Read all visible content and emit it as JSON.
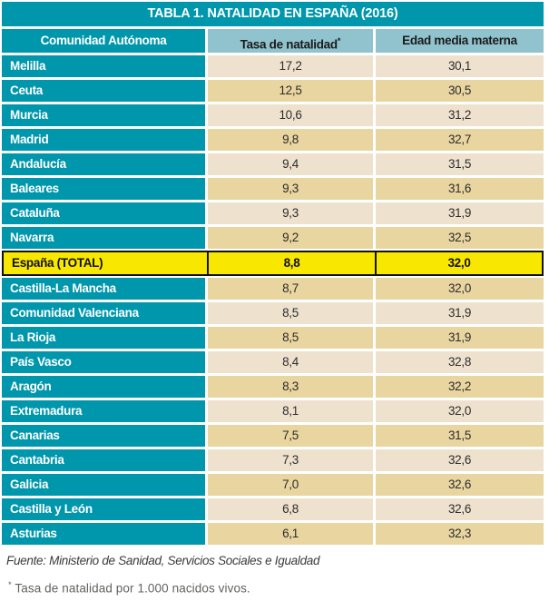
{
  "title": "TABLA 1. NATALIDAD EN ESPAÑA (2016)",
  "header": {
    "col1": "Comunidad Autónoma",
    "col2": "Tasa de natalidad",
    "col2_sup": "*",
    "col3": "Edad media materna"
  },
  "rows": [
    {
      "name": "Melilla",
      "tasa": "17,2",
      "edad": "30,1"
    },
    {
      "name": "Ceuta",
      "tasa": "12,5",
      "edad": "30,5"
    },
    {
      "name": "Murcia",
      "tasa": "10,6",
      "edad": "31,2"
    },
    {
      "name": "Madrid",
      "tasa": "9,8",
      "edad": "32,7"
    },
    {
      "name": "Andalucía",
      "tasa": "9,4",
      "edad": "31,5"
    },
    {
      "name": "Baleares",
      "tasa": "9,3",
      "edad": "31,6"
    },
    {
      "name": "Cataluña",
      "tasa": "9,3",
      "edad": "31,9"
    },
    {
      "name": "Navarra",
      "tasa": "9,2",
      "edad": "32,5"
    },
    {
      "name": "España (TOTAL)",
      "tasa": "8,8",
      "edad": "32,0",
      "highlight": true
    },
    {
      "name": "Castilla-La Mancha",
      "tasa": "8,7",
      "edad": "32,0"
    },
    {
      "name": "Comunidad Valenciana",
      "tasa": "8,5",
      "edad": "31,9"
    },
    {
      "name": "La Rioja",
      "tasa": "8,5",
      "edad": "31,9"
    },
    {
      "name": "País Vasco",
      "tasa": "8,4",
      "edad": "32,8"
    },
    {
      "name": "Aragón",
      "tasa": "8,3",
      "edad": "32,2"
    },
    {
      "name": "Extremadura",
      "tasa": "8,1",
      "edad": "32,0"
    },
    {
      "name": "Canarias",
      "tasa": "7,5",
      "edad": "31,5"
    },
    {
      "name": "Cantabria",
      "tasa": "7,3",
      "edad": "32,6"
    },
    {
      "name": "Galicia",
      "tasa": "7,0",
      "edad": "32,6"
    },
    {
      "name": "Castilla y León",
      "tasa": "6,8",
      "edad": "32,6"
    },
    {
      "name": "Asturias",
      "tasa": "6,1",
      "edad": "32,3"
    }
  ],
  "footer": {
    "source": "Fuente: Ministerio de Sanidad, Servicios Sociales e Igualdad",
    "note_marker": "*",
    "note_text": " Tasa de natalidad por 1.000 nacidos vivos."
  },
  "colors": {
    "teal": "#0096ac",
    "header_bg": "#90c3ce",
    "row_light": "#eee2cf",
    "row_dark": "#e9d5a0",
    "highlight_yellow": "#f8e700",
    "title_text": "#ffffff",
    "body_text": "#2e2d2b"
  },
  "chart_data": {
    "type": "table",
    "title": "TABLA 1. NATALIDAD EN ESPAÑA (2016)",
    "columns": [
      "Comunidad Autónoma",
      "Tasa de natalidad*",
      "Edad media materna"
    ],
    "rows": [
      [
        "Melilla",
        17.2,
        30.1
      ],
      [
        "Ceuta",
        12.5,
        30.5
      ],
      [
        "Murcia",
        10.6,
        31.2
      ],
      [
        "Madrid",
        9.8,
        32.7
      ],
      [
        "Andalucía",
        9.4,
        31.5
      ],
      [
        "Baleares",
        9.3,
        31.6
      ],
      [
        "Cataluña",
        9.3,
        31.9
      ],
      [
        "Navarra",
        9.2,
        32.5
      ],
      [
        "España (TOTAL)",
        8.8,
        32.0
      ],
      [
        "Castilla-La Mancha",
        8.7,
        32.0
      ],
      [
        "Comunidad Valenciana",
        8.5,
        31.9
      ],
      [
        "La Rioja",
        8.5,
        31.9
      ],
      [
        "País Vasco",
        8.4,
        32.8
      ],
      [
        "Aragón",
        8.3,
        32.2
      ],
      [
        "Extremadura",
        8.1,
        32.0
      ],
      [
        "Canarias",
        7.5,
        31.5
      ],
      [
        "Cantabria",
        7.3,
        32.6
      ],
      [
        "Galicia",
        7.0,
        32.6
      ],
      [
        "Castilla y León",
        6.8,
        32.6
      ],
      [
        "Asturias",
        6.1,
        32.3
      ]
    ],
    "highlighted_row": "España (TOTAL)",
    "source": "Fuente: Ministerio de Sanidad, Servicios Sociales e Igualdad",
    "footnote": "* Tasa de natalidad por 1.000 nacidos vivos."
  }
}
